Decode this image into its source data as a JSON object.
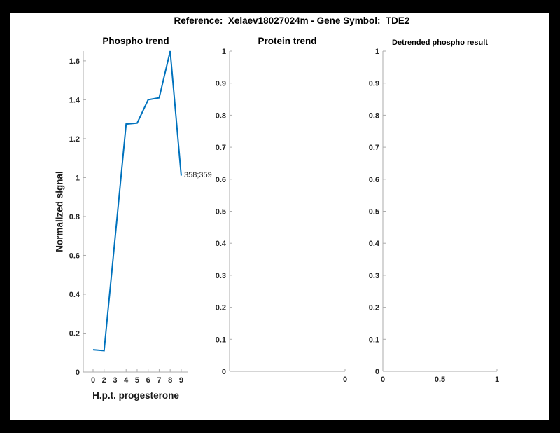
{
  "figure": {
    "title": "Reference:  Xelaev18027024m - Gene Symbol:  TDE2",
    "background": "#000000",
    "canvas": "#ffffff"
  },
  "colors": {
    "line": "#0072BD",
    "axis": "#ababab",
    "tick_text": "#262626",
    "title_text": "#000000"
  },
  "chart_data": [
    {
      "type": "line",
      "title": "Phospho trend",
      "xlabel": "H.p.t. progesterone",
      "ylabel": "Normalized signal",
      "xlim": [
        0.11,
        9.64
      ],
      "ylim": [
        0,
        1.65
      ],
      "grid": false,
      "legend": null,
      "x": [
        1,
        2,
        3,
        4,
        5,
        6,
        7,
        8,
        9
      ],
      "x_tick_labels": [
        "0",
        "2",
        "3",
        "4",
        "5",
        "6",
        "7",
        "8",
        "9"
      ],
      "values": [
        0.115,
        0.11,
        0.69,
        1.275,
        1.28,
        1.4,
        1.41,
        1.65,
        1.01
      ],
      "y_ticks": [
        {
          "v": 0,
          "label": "0"
        },
        {
          "v": 0.2,
          "label": "0.2"
        },
        {
          "v": 0.4,
          "label": "0.4"
        },
        {
          "v": 0.6,
          "label": "0.6"
        },
        {
          "v": 0.8,
          "label": "0.8"
        },
        {
          "v": 1,
          "label": "1"
        },
        {
          "v": 1.2,
          "label": "1.2"
        },
        {
          "v": 1.4,
          "label": "1.4"
        },
        {
          "v": 1.6,
          "label": "1.6"
        }
      ],
      "annotation": {
        "text": "358;359",
        "x": 9,
        "y": 1.01
      }
    },
    {
      "type": "line",
      "title": "Protein trend",
      "xlabel": "",
      "ylabel": "",
      "xlim": [
        0,
        1
      ],
      "ylim": [
        0,
        1
      ],
      "grid": false,
      "legend": null,
      "x": [],
      "values": [],
      "x_ticks": [
        {
          "v": 1,
          "label": "0"
        }
      ],
      "y_ticks": [
        {
          "v": 0,
          "label": "0"
        },
        {
          "v": 0.1,
          "label": "0.1"
        },
        {
          "v": 0.2,
          "label": "0.2"
        },
        {
          "v": 0.3,
          "label": "0.3"
        },
        {
          "v": 0.4,
          "label": "0.4"
        },
        {
          "v": 0.5,
          "label": "0.5"
        },
        {
          "v": 0.6,
          "label": "0.6"
        },
        {
          "v": 0.7,
          "label": "0.7"
        },
        {
          "v": 0.8,
          "label": "0.8"
        },
        {
          "v": 0.9,
          "label": "0.9"
        },
        {
          "v": 1,
          "label": "1"
        }
      ]
    },
    {
      "type": "line",
      "title": "Detrended phospho result",
      "xlabel": "",
      "ylabel": "",
      "xlim": [
        0,
        1
      ],
      "ylim": [
        0,
        1
      ],
      "grid": false,
      "legend": null,
      "x": [],
      "values": [],
      "x_ticks": [
        {
          "v": 0,
          "label": "0"
        },
        {
          "v": 0.5,
          "label": "0.5"
        },
        {
          "v": 1,
          "label": "1"
        }
      ],
      "y_ticks": [
        {
          "v": 0,
          "label": "0"
        },
        {
          "v": 0.1,
          "label": "0.1"
        },
        {
          "v": 0.2,
          "label": "0.2"
        },
        {
          "v": 0.3,
          "label": "0.3"
        },
        {
          "v": 0.4,
          "label": "0.4"
        },
        {
          "v": 0.5,
          "label": "0.5"
        },
        {
          "v": 0.6,
          "label": "0.6"
        },
        {
          "v": 0.7,
          "label": "0.7"
        },
        {
          "v": 0.8,
          "label": "0.8"
        },
        {
          "v": 0.9,
          "label": "0.9"
        },
        {
          "v": 1,
          "label": "1"
        }
      ]
    }
  ]
}
